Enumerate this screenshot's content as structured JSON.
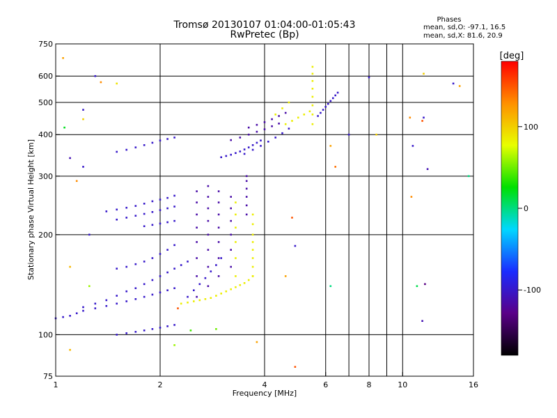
{
  "chart_data": {
    "type": "scatter",
    "title": "Tromsø 20130107 01:04:00-01:05:43",
    "subtitle": "RwPretec (Bp)",
    "xlabel": "Frequency [MHz]",
    "ylabel": "Stationary phase Virtual Height [km]",
    "x_scale": "log",
    "y_scale": "log",
    "xlim": [
      1,
      16
    ],
    "ylim": [
      75,
      750
    ],
    "x_ticks": [
      "1",
      "2",
      "4",
      "6",
      "8",
      "10",
      "16"
    ],
    "x_tick_values": [
      1,
      2,
      4,
      6,
      8,
      10,
      16
    ],
    "x_minor_gridlines": [
      7,
      9
    ],
    "y_ticks": [
      "75",
      "100",
      "200",
      "300",
      "400",
      "500",
      "600",
      "750"
    ],
    "y_tick_values": [
      75,
      100,
      200,
      300,
      400,
      500,
      600,
      750
    ],
    "grid": true,
    "stats": {
      "header": "Phases",
      "line1": "mean, sd,O: -97.1, 16.5",
      "line2": "mean, sd,X:  81.6, 20.9"
    },
    "colorbar": {
      "label": "[deg]",
      "range": [
        -180,
        180
      ],
      "ticks": [
        "100",
        "0",
        "-100"
      ],
      "tick_values": [
        100,
        0,
        -100
      ],
      "colors": [
        "#000000",
        "#5a0088",
        "#1a2cff",
        "#00d8ff",
        "#00e000",
        "#e8ff00",
        "#ff9000",
        "#ff0000"
      ]
    },
    "series": [
      {
        "phase": -100,
        "traces": [
          {
            "x": [
              1.0,
              1.05,
              1.1,
              1.15,
              1.2,
              1.3,
              1.4,
              1.5,
              1.6,
              1.7,
              1.8,
              1.9,
              2.0,
              2.1,
              2.2
            ],
            "y": [
              112,
              113,
              114,
              116,
              118,
              120,
              122,
              124,
              126,
              128,
              130,
              132,
              134,
              136,
              138
            ]
          },
          {
            "x": [
              1.2,
              1.3,
              1.4,
              1.5,
              1.6,
              1.7,
              1.8,
              1.9,
              2.0,
              2.1,
              2.2,
              2.3,
              2.4
            ],
            "y": [
              121,
              124,
              127,
              131,
              135,
              138,
              142,
              146,
              150,
              154,
              158,
              162,
              166
            ]
          },
          {
            "x": [
              1.5,
              1.6,
              1.7,
              1.8,
              1.9,
              2.0,
              2.1,
              2.2
            ],
            "y": [
              158,
              160,
              163,
              166,
              170,
              175,
              180,
              186
            ]
          },
          {
            "x": [
              1.4,
              1.5,
              1.6,
              1.7,
              1.8,
              1.9,
              2.0,
              2.1,
              2.2
            ],
            "y": [
              235,
              238,
              241,
              244,
              248,
              252,
              255,
              258,
              262
            ]
          },
          {
            "x": [
              1.5,
              1.6,
              1.7,
              1.8,
              1.9,
              2.0,
              2.1,
              2.2
            ],
            "y": [
              222,
              225,
              228,
              231,
              234,
              237,
              240,
              243
            ]
          },
          {
            "x": [
              1.8,
              1.9,
              2.0,
              2.1,
              2.2
            ],
            "y": [
              212,
              214,
              216,
              218,
              220
            ]
          },
          {
            "x": [
              1.5,
              1.6,
              1.7,
              1.8,
              1.9,
              2.0,
              2.1,
              2.2
            ],
            "y": [
              355,
              360,
              366,
              372,
              378,
              384,
              388,
              392
            ]
          },
          {
            "x": [
              1.5,
              1.6,
              1.7,
              1.8,
              1.9,
              2.0,
              2.1,
              2.2
            ],
            "y": [
              100,
              101,
              102,
              103,
              104,
              105,
              106,
              107
            ]
          },
          {
            "x": [
              2.4,
              2.5,
              2.6,
              2.7,
              2.8,
              2.9,
              3.0
            ],
            "y": [
              130,
              136,
              142,
              148,
              155,
              162,
              170
            ]
          },
          {
            "x": [
              3.0,
              3.1,
              3.2,
              3.3,
              3.4,
              3.5,
              3.6,
              3.7,
              3.8,
              3.9
            ],
            "y": [
              342,
              345,
              348,
              352,
              356,
              361,
              366,
              372,
              378,
              384
            ]
          },
          {
            "x": [
              3.5,
              3.7,
              3.9,
              4.1,
              4.3,
              4.5,
              4.7
            ],
            "y": [
              350,
              360,
              370,
              381,
              392,
              404,
              417
            ]
          },
          {
            "x": [
              5.7,
              5.8,
              5.9,
              6.0,
              6.1,
              6.2,
              6.3,
              6.4,
              6.5
            ],
            "y": [
              455,
              465,
              475,
              485,
              495,
              505,
              515,
              525,
              535
            ]
          }
        ]
      },
      {
        "phase": -115,
        "traces": [
          {
            "x": [
              2.55,
              2.55,
              2.55,
              2.55,
              2.55,
              2.55,
              2.55,
              2.55
            ],
            "y": [
              130,
              150,
              170,
              190,
              210,
              230,
              250,
              270
            ]
          },
          {
            "x": [
              2.75,
              2.75,
              2.75,
              2.75,
              2.75,
              2.75,
              2.75,
              2.75
            ],
            "y": [
              140,
              160,
              180,
              200,
              220,
              240,
              260,
              280
            ]
          },
          {
            "x": [
              2.95,
              2.95,
              2.95,
              2.95,
              2.95,
              2.95,
              2.95
            ],
            "y": [
              150,
              170,
              190,
              210,
              230,
              250,
              270
            ]
          },
          {
            "x": [
              3.2,
              3.2,
              3.2,
              3.2,
              3.2,
              3.2
            ],
            "y": [
              160,
              180,
              200,
              220,
              240,
              260
            ]
          },
          {
            "x": [
              3.55,
              3.55,
              3.55,
              3.55,
              3.55,
              3.55
            ],
            "y": [
              230,
              245,
              260,
              275,
              290,
              300
            ]
          },
          {
            "x": [
              3.2,
              3.4,
              3.6,
              3.8,
              4.0,
              4.2,
              4.4
            ],
            "y": [
              385,
              392,
              400,
              408,
              415,
              424,
              432
            ]
          },
          {
            "x": [
              3.6,
              3.8,
              4.0,
              4.2,
              4.4,
              4.6
            ],
            "y": [
              420,
              428,
              436,
              445,
              455,
              465
            ]
          }
        ]
      },
      {
        "phase": 85,
        "traces": [
          {
            "x": [
              2.3,
              2.4,
              2.5,
              2.6,
              2.7,
              2.8,
              2.9,
              3.0,
              3.1,
              3.2,
              3.3,
              3.4,
              3.5,
              3.6,
              3.7
            ],
            "y": [
              124,
              125,
              126,
              127,
              128,
              129,
              131,
              133,
              135,
              137,
              139,
              141,
              143,
              146,
              150
            ]
          },
          {
            "x": [
              3.7,
              3.7,
              3.7,
              3.7,
              3.7,
              3.7,
              3.7,
              3.7
            ],
            "y": [
              150,
              160,
              170,
              180,
              190,
              200,
              215,
              230
            ]
          },
          {
            "x": [
              3.3,
              3.3,
              3.3,
              3.3,
              3.3,
              3.3
            ],
            "y": [
              150,
              170,
              190,
              210,
              230,
              250
            ]
          },
          {
            "x": [
              5.5,
              5.5,
              5.5,
              5.5,
              5.5,
              5.5,
              5.5,
              5.5
            ],
            "y": [
              430,
              460,
              490,
              520,
              550,
              580,
              610,
              640
            ]
          },
          {
            "x": [
              4.6,
              4.8,
              5.0,
              5.2,
              5.4
            ],
            "y": [
              430,
              440,
              450,
              460,
              470
            ]
          },
          {
            "x": [
              4.3,
              4.5,
              4.7
            ],
            "y": [
              460,
              480,
              500
            ]
          }
        ]
      }
    ],
    "scattered_points": [
      {
        "x": 1.05,
        "y": 680,
        "phase": 120
      },
      {
        "x": 1.3,
        "y": 600,
        "phase": -100
      },
      {
        "x": 1.35,
        "y": 575,
        "phase": 130
      },
      {
        "x": 1.5,
        "y": 570,
        "phase": 90
      },
      {
        "x": 1.2,
        "y": 475,
        "phase": -100
      },
      {
        "x": 1.2,
        "y": 445,
        "phase": 100
      },
      {
        "x": 1.06,
        "y": 420,
        "phase": 20
      },
      {
        "x": 1.1,
        "y": 340,
        "phase": -110
      },
      {
        "x": 1.2,
        "y": 320,
        "phase": -100
      },
      {
        "x": 1.15,
        "y": 290,
        "phase": 130
      },
      {
        "x": 1.25,
        "y": 200,
        "phase": -100
      },
      {
        "x": 1.1,
        "y": 160,
        "phase": 110
      },
      {
        "x": 1.25,
        "y": 140,
        "phase": 60
      },
      {
        "x": 1.1,
        "y": 90,
        "phase": 110
      },
      {
        "x": 2.2,
        "y": 93,
        "phase": 60
      },
      {
        "x": 2.25,
        "y": 120,
        "phase": 150
      },
      {
        "x": 2.45,
        "y": 103,
        "phase": 40
      },
      {
        "x": 2.9,
        "y": 104,
        "phase": 50
      },
      {
        "x": 3.8,
        "y": 95,
        "phase": 120
      },
      {
        "x": 4.9,
        "y": 80,
        "phase": 150
      },
      {
        "x": 4.6,
        "y": 150,
        "phase": 120
      },
      {
        "x": 4.8,
        "y": 225,
        "phase": 150
      },
      {
        "x": 4.9,
        "y": 185,
        "phase": -100
      },
      {
        "x": 6.2,
        "y": 370,
        "phase": 120
      },
      {
        "x": 6.4,
        "y": 320,
        "phase": 140
      },
      {
        "x": 6.2,
        "y": 140,
        "phase": 0
      },
      {
        "x": 7.0,
        "y": 400,
        "phase": -100
      },
      {
        "x": 8.0,
        "y": 595,
        "phase": -100
      },
      {
        "x": 8.4,
        "y": 400,
        "phase": 100
      },
      {
        "x": 10.5,
        "y": 450,
        "phase": 130
      },
      {
        "x": 10.7,
        "y": 370,
        "phase": -100
      },
      {
        "x": 11.5,
        "y": 610,
        "phase": 100
      },
      {
        "x": 11.5,
        "y": 450,
        "phase": -100
      },
      {
        "x": 11.4,
        "y": 440,
        "phase": 150
      },
      {
        "x": 11.8,
        "y": 315,
        "phase": -110
      },
      {
        "x": 10.6,
        "y": 260,
        "phase": 130
      },
      {
        "x": 11.0,
        "y": 140,
        "phase": 10
      },
      {
        "x": 11.6,
        "y": 142,
        "phase": -130
      },
      {
        "x": 11.4,
        "y": 110,
        "phase": -110
      },
      {
        "x": 14.0,
        "y": 570,
        "phase": -100
      },
      {
        "x": 14.6,
        "y": 560,
        "phase": 120
      },
      {
        "x": 15.5,
        "y": 300,
        "phase": 0
      }
    ]
  }
}
